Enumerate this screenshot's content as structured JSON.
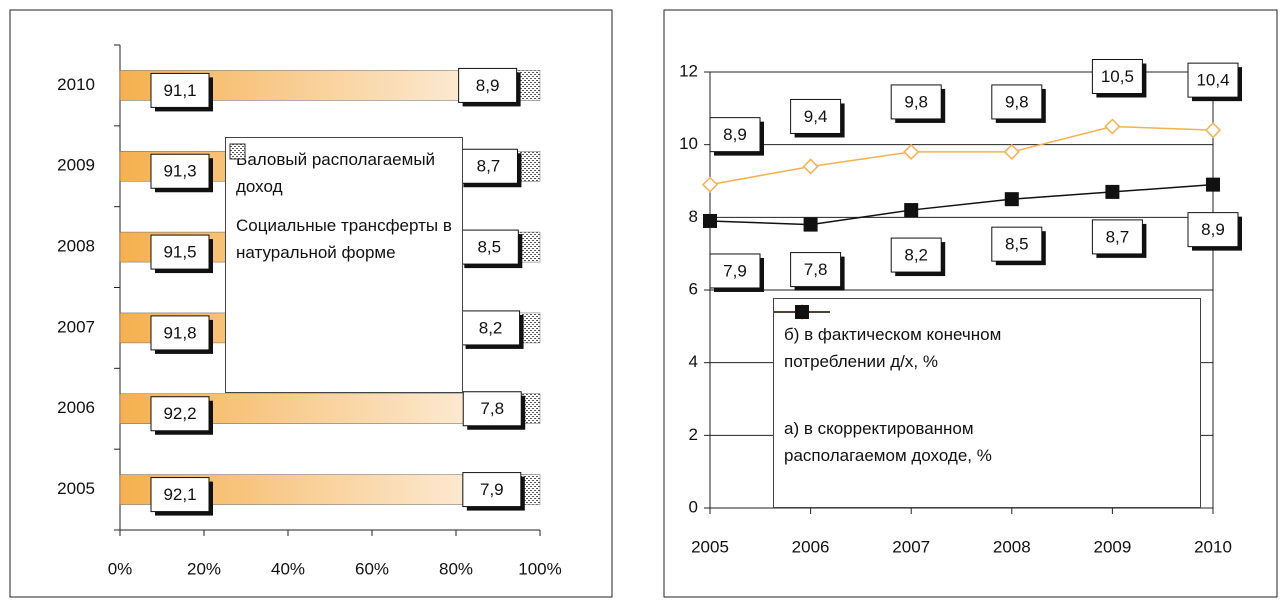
{
  "chart_data": [
    {
      "type": "bar",
      "orientation": "horizontal",
      "stacked": "percent",
      "categories": [
        "2005",
        "2006",
        "2007",
        "2008",
        "2009",
        "2010"
      ],
      "series": [
        {
          "name": "Валовый располагаемый доход",
          "color": "#f5b050",
          "values": [
            92.1,
            92.2,
            91.8,
            91.5,
            91.3,
            91.1
          ],
          "value_labels": [
            "92,1",
            "92,2",
            "91,8",
            "91,5",
            "91,3",
            "91,1"
          ]
        },
        {
          "name": "Социальные трансферты в натуральной форме",
          "color": "#d0d0d0",
          "values": [
            7.9,
            7.8,
            8.2,
            8.5,
            8.7,
            8.9
          ],
          "value_labels": [
            "7,9",
            "7,8",
            "8,2",
            "8,5",
            "8,7",
            "8,9"
          ]
        }
      ],
      "xlim": [
        0,
        100
      ],
      "xticks": [
        {
          "value": 0,
          "label": "0%"
        },
        {
          "value": 20,
          "label": "20%"
        },
        {
          "value": 40,
          "label": "40%"
        },
        {
          "value": 60,
          "label": "60%"
        },
        {
          "value": 80,
          "label": "80%"
        },
        {
          "value": 100,
          "label": "100%"
        }
      ]
    },
    {
      "type": "line",
      "x": [
        2005,
        2006,
        2007,
        2008,
        2009,
        2010
      ],
      "series": [
        {
          "name": "б) в фактическом конечном потреблении д/х, %",
          "color": "#f5b050",
          "marker": "diamond",
          "values": [
            8.9,
            9.4,
            9.8,
            9.8,
            10.5,
            10.4
          ],
          "value_labels": [
            "8,9",
            "9,4",
            "9,8",
            "9,8",
            "10,5",
            "10,4"
          ]
        },
        {
          "name": "а) в скорректированном располагаемом доходе, %",
          "color": "#111111",
          "marker": "square",
          "values": [
            7.9,
            7.8,
            8.2,
            8.5,
            8.7,
            8.9
          ],
          "value_labels": [
            "7,9",
            "7,8",
            "8,2",
            "8,5",
            "8,7",
            "8,9"
          ]
        }
      ],
      "xlim": [
        2005,
        2010
      ],
      "xticks": [
        2005,
        2006,
        2007,
        2008,
        2009,
        2010
      ],
      "ylim": [
        0,
        12
      ],
      "yticks": [
        0,
        2,
        4,
        6,
        8,
        10,
        12
      ],
      "grid": true
    }
  ]
}
